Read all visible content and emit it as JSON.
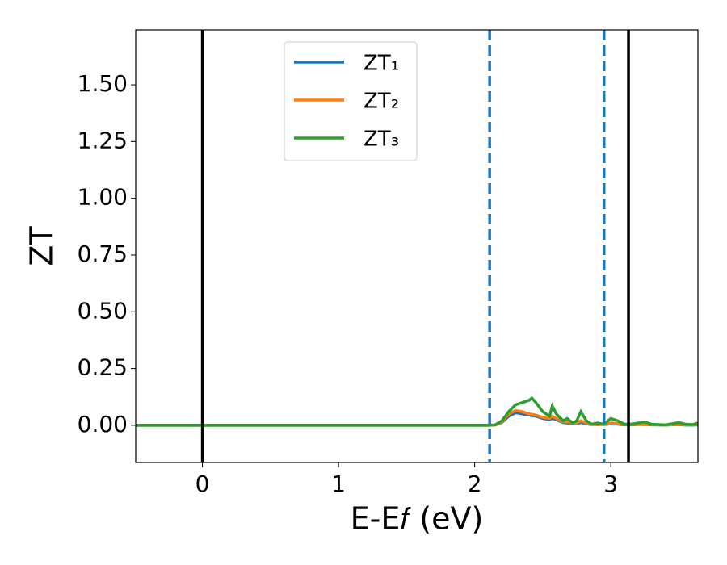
{
  "chart_data": {
    "type": "line",
    "xlabel": "E-E𝑓 (eV)",
    "ylabel": "ZT",
    "x": [
      -0.5,
      0,
      0.5,
      1,
      1.5,
      2,
      2.1,
      2.15,
      2.2,
      2.25,
      2.3,
      2.35,
      2.4,
      2.42,
      2.45,
      2.5,
      2.55,
      2.57,
      2.6,
      2.65,
      2.68,
      2.72,
      2.75,
      2.78,
      2.82,
      2.86,
      2.9,
      2.95,
      3.0,
      3.05,
      3.1,
      3.15,
      3.2,
      3.25,
      3.3,
      3.4,
      3.5,
      3.55,
      3.6,
      3.64
    ],
    "series": [
      {
        "name": "ZT₁",
        "color": "#1f77b4",
        "values": [
          0,
          0,
          0,
          0,
          0,
          0,
          0,
          0.001,
          0.012,
          0.04,
          0.055,
          0.05,
          0.045,
          0.042,
          0.04,
          0.03,
          0.025,
          0.03,
          0.025,
          0.012,
          0.01,
          0.006,
          0.008,
          0.012,
          0.006,
          0.003,
          0.004,
          0.003,
          0.006,
          0.005,
          0.002,
          0.002,
          0.003,
          0.004,
          0.002,
          0.001,
          0.003,
          0.001,
          0.001,
          0.002
        ]
      },
      {
        "name": "ZT₂",
        "color": "#ff7f0e",
        "values": [
          0,
          0,
          0,
          0,
          0,
          0,
          0,
          0.001,
          0.015,
          0.05,
          0.065,
          0.06,
          0.05,
          0.048,
          0.045,
          0.035,
          0.03,
          0.04,
          0.03,
          0.015,
          0.015,
          0.008,
          0.01,
          0.02,
          0.01,
          0.004,
          0.006,
          0.004,
          0.01,
          0.008,
          0.003,
          0.003,
          0.004,
          0.006,
          0.003,
          0.001,
          0.005,
          0.002,
          0.002,
          0.004
        ]
      },
      {
        "name": "ZT₃",
        "color": "#2ca02c",
        "values": [
          0,
          0,
          0,
          0,
          0,
          0,
          0,
          0.002,
          0.02,
          0.06,
          0.09,
          0.1,
          0.11,
          0.12,
          0.1,
          0.06,
          0.04,
          0.085,
          0.05,
          0.02,
          0.03,
          0.01,
          0.02,
          0.06,
          0.02,
          0.005,
          0.01,
          0.005,
          0.03,
          0.02,
          0.005,
          0.005,
          0.01,
          0.015,
          0.005,
          0.002,
          0.012,
          0.005,
          0.003,
          0.01
        ]
      }
    ],
    "vlines": [
      {
        "x": 0,
        "color": "#000000",
        "style": "solid"
      },
      {
        "x": 3.13,
        "color": "#000000",
        "style": "solid"
      },
      {
        "x": 2.11,
        "color": "#1f77b4",
        "style": "dashed"
      },
      {
        "x": 2.95,
        "color": "#1f77b4",
        "style": "dashed"
      }
    ],
    "xlim": [
      -0.49,
      3.64
    ],
    "xticks": [
      0,
      1,
      2,
      3
    ],
    "ylim": [
      -0.164,
      1.742
    ],
    "yticks": [
      {
        "value": 0,
        "label": "0.00"
      },
      {
        "value": 0.25,
        "label": "0.25"
      },
      {
        "value": 0.5,
        "label": "0.50"
      },
      {
        "value": 0.75,
        "label": "0.75"
      },
      {
        "value": 1,
        "label": "1.00"
      },
      {
        "value": 1.25,
        "label": "1.25"
      },
      {
        "value": 1.5,
        "label": "1.50"
      }
    ],
    "legend": "upper center",
    "grid": false
  }
}
